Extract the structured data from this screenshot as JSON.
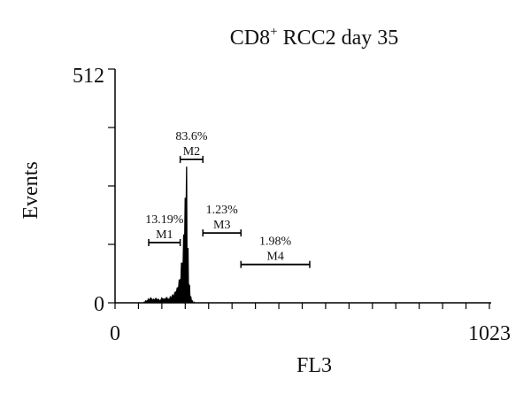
{
  "chart_data": {
    "type": "histogram",
    "title_main": "CD8",
    "title_sup": "+",
    "title_rest": " RCC2 day 35",
    "xlabel": "FL3",
    "ylabel": "Events",
    "xlim": [
      0,
      1023
    ],
    "ylim": [
      0,
      512
    ],
    "x_tick_labels": [
      "0",
      "1023"
    ],
    "y_tick_labels": [
      "0",
      "512"
    ],
    "y_minor_ticks": [
      128,
      256,
      384
    ],
    "color": "#000000",
    "bins": [
      {
        "x": 78,
        "y": 3
      },
      {
        "x": 84,
        "y": 6
      },
      {
        "x": 90,
        "y": 9
      },
      {
        "x": 96,
        "y": 11
      },
      {
        "x": 102,
        "y": 8
      },
      {
        "x": 108,
        "y": 10
      },
      {
        "x": 114,
        "y": 9
      },
      {
        "x": 120,
        "y": 7
      },
      {
        "x": 126,
        "y": 11
      },
      {
        "x": 132,
        "y": 9
      },
      {
        "x": 138,
        "y": 12
      },
      {
        "x": 144,
        "y": 10
      },
      {
        "x": 150,
        "y": 14
      },
      {
        "x": 156,
        "y": 18
      },
      {
        "x": 162,
        "y": 24
      },
      {
        "x": 168,
        "y": 34
      },
      {
        "x": 174,
        "y": 52
      },
      {
        "x": 180,
        "y": 88
      },
      {
        "x": 186,
        "y": 150
      },
      {
        "x": 190,
        "y": 230
      },
      {
        "x": 194,
        "y": 298
      },
      {
        "x": 198,
        "y": 120
      },
      {
        "x": 202,
        "y": 40
      },
      {
        "x": 206,
        "y": 14
      },
      {
        "x": 210,
        "y": 5
      },
      {
        "x": 214,
        "y": 2
      }
    ],
    "markers": [
      {
        "name": "M1",
        "percent": "13.19%",
        "x_start": 92,
        "x_end": 178,
        "y_level": 132
      },
      {
        "name": "M2",
        "percent": "83.6%",
        "x_start": 178,
        "x_end": 240,
        "y_level": 314
      },
      {
        "name": "M3",
        "percent": "1.23%",
        "x_start": 240,
        "x_end": 344,
        "y_level": 153
      },
      {
        "name": "M4",
        "percent": "1.98%",
        "x_start": 344,
        "x_end": 532,
        "y_level": 84
      }
    ]
  }
}
